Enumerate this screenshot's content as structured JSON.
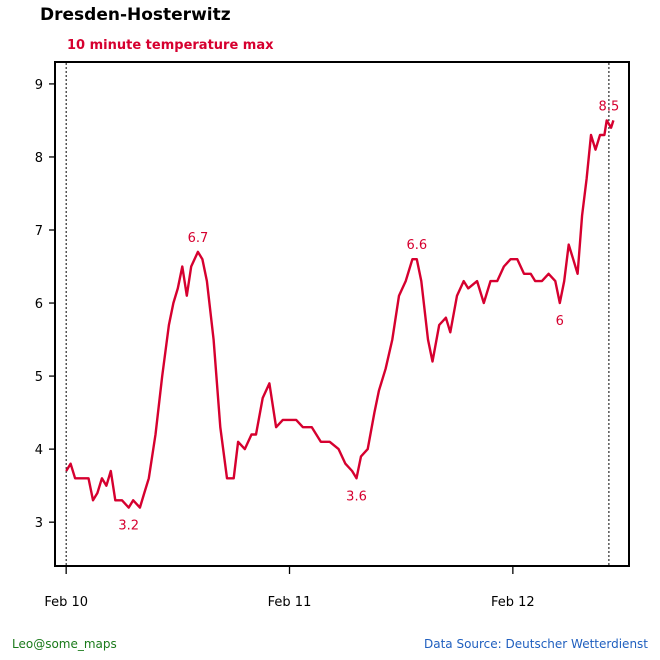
{
  "header": {
    "title": "Dresden-Hosterwitz",
    "subtitle": "10 minute temperature max"
  },
  "footer": {
    "credit": "Leo@some_maps",
    "source": "Data Source: Deutscher Wetterdienst"
  },
  "colors": {
    "series": "#d6002f",
    "credit": "#1a7a1a",
    "source": "#1f5fbf"
  },
  "chart_data": {
    "type": "line",
    "title": "10 minute temperature max",
    "xlabel": "",
    "ylabel": "",
    "xlim": [
      -0.05,
      2.52
    ],
    "ylim": [
      2.4,
      9.3
    ],
    "y_ticks": [
      3,
      4,
      5,
      6,
      7,
      8,
      9
    ],
    "x_ticks": [
      {
        "x": 0,
        "label": "Feb 10"
      },
      {
        "x": 1,
        "label": "Feb 11"
      },
      {
        "x": 2,
        "label": "Feb 12"
      }
    ],
    "vlines": [
      0,
      2.43
    ],
    "grid": false,
    "series": [
      {
        "points": [
          [
            0.0,
            3.7
          ],
          [
            0.02,
            3.8
          ],
          [
            0.04,
            3.6
          ],
          [
            0.07,
            3.6
          ],
          [
            0.1,
            3.6
          ],
          [
            0.12,
            3.3
          ],
          [
            0.14,
            3.4
          ],
          [
            0.16,
            3.6
          ],
          [
            0.18,
            3.5
          ],
          [
            0.2,
            3.7
          ],
          [
            0.22,
            3.3
          ],
          [
            0.25,
            3.3
          ],
          [
            0.28,
            3.2
          ],
          [
            0.3,
            3.3
          ],
          [
            0.33,
            3.2
          ],
          [
            0.35,
            3.4
          ],
          [
            0.37,
            3.6
          ],
          [
            0.4,
            4.2
          ],
          [
            0.43,
            5.0
          ],
          [
            0.46,
            5.7
          ],
          [
            0.48,
            6.0
          ],
          [
            0.5,
            6.2
          ],
          [
            0.52,
            6.5
          ],
          [
            0.54,
            6.1
          ],
          [
            0.56,
            6.5
          ],
          [
            0.59,
            6.7
          ],
          [
            0.61,
            6.6
          ],
          [
            0.63,
            6.3
          ],
          [
            0.66,
            5.5
          ],
          [
            0.69,
            4.3
          ],
          [
            0.72,
            3.6
          ],
          [
            0.75,
            3.6
          ],
          [
            0.77,
            4.1
          ],
          [
            0.8,
            4.0
          ],
          [
            0.83,
            4.2
          ],
          [
            0.85,
            4.2
          ],
          [
            0.88,
            4.7
          ],
          [
            0.91,
            4.9
          ],
          [
            0.94,
            4.3
          ],
          [
            0.97,
            4.4
          ],
          [
            1.0,
            4.4
          ],
          [
            1.03,
            4.4
          ],
          [
            1.06,
            4.3
          ],
          [
            1.1,
            4.3
          ],
          [
            1.14,
            4.1
          ],
          [
            1.18,
            4.1
          ],
          [
            1.22,
            4.0
          ],
          [
            1.25,
            3.8
          ],
          [
            1.28,
            3.7
          ],
          [
            1.3,
            3.6
          ],
          [
            1.32,
            3.9
          ],
          [
            1.35,
            4.0
          ],
          [
            1.38,
            4.5
          ],
          [
            1.4,
            4.8
          ],
          [
            1.43,
            5.1
          ],
          [
            1.46,
            5.5
          ],
          [
            1.49,
            6.1
          ],
          [
            1.52,
            6.3
          ],
          [
            1.55,
            6.6
          ],
          [
            1.57,
            6.6
          ],
          [
            1.59,
            6.3
          ],
          [
            1.62,
            5.5
          ],
          [
            1.64,
            5.2
          ],
          [
            1.67,
            5.7
          ],
          [
            1.7,
            5.8
          ],
          [
            1.72,
            5.6
          ],
          [
            1.75,
            6.1
          ],
          [
            1.78,
            6.3
          ],
          [
            1.8,
            6.2
          ],
          [
            1.84,
            6.3
          ],
          [
            1.87,
            6.0
          ],
          [
            1.9,
            6.3
          ],
          [
            1.93,
            6.3
          ],
          [
            1.96,
            6.5
          ],
          [
            1.99,
            6.6
          ],
          [
            2.02,
            6.6
          ],
          [
            2.05,
            6.4
          ],
          [
            2.08,
            6.4
          ],
          [
            2.1,
            6.3
          ],
          [
            2.13,
            6.3
          ],
          [
            2.16,
            6.4
          ],
          [
            2.19,
            6.3
          ],
          [
            2.21,
            6.0
          ],
          [
            2.23,
            6.3
          ],
          [
            2.25,
            6.8
          ],
          [
            2.27,
            6.6
          ],
          [
            2.29,
            6.4
          ],
          [
            2.31,
            7.2
          ],
          [
            2.33,
            7.7
          ],
          [
            2.35,
            8.3
          ],
          [
            2.37,
            8.1
          ],
          [
            2.39,
            8.3
          ],
          [
            2.41,
            8.3
          ],
          [
            2.42,
            8.5
          ],
          [
            2.44,
            8.4
          ],
          [
            2.45,
            8.5
          ]
        ]
      }
    ],
    "annotations": [
      {
        "x": 0.28,
        "y": 3.2,
        "label": "3.2",
        "pos": "below"
      },
      {
        "x": 0.59,
        "y": 6.7,
        "label": "6.7",
        "pos": "above"
      },
      {
        "x": 1.3,
        "y": 3.6,
        "label": "3.6",
        "pos": "below"
      },
      {
        "x": 1.57,
        "y": 6.6,
        "label": "6.6",
        "pos": "above"
      },
      {
        "x": 2.21,
        "y": 6.0,
        "label": "6",
        "pos": "below"
      },
      {
        "x": 2.43,
        "y": 8.5,
        "label": "8.5",
        "pos": "above"
      }
    ]
  }
}
